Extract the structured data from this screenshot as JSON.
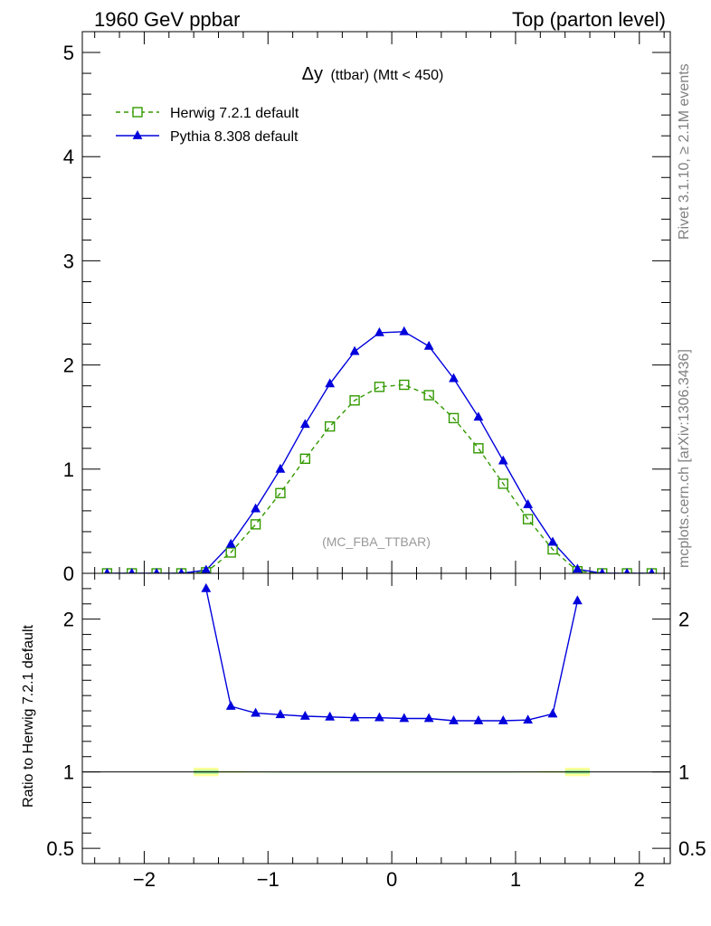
{
  "header": {
    "left": "1960 GeV ppbar",
    "right": "Top (parton level)"
  },
  "side_labels": {
    "rivet": "Rivet 3.1.10, ≥ 2.1M events",
    "mcplots": "mcplots.cern.ch [arXiv:1306.3436]"
  },
  "plot_title": {
    "main": "Δy",
    "sub": "(ttbar) (Mtt < 450)"
  },
  "analysis_label": "(MC_FBA_TTBAR)",
  "colors": {
    "herwig": "#339900",
    "pythia": "#0000dd",
    "band_outer": "#ffff99",
    "band_inner": "#99ee99"
  },
  "chart_data": [
    {
      "type": "line",
      "panel": "main",
      "xlim": [
        -2.5,
        2.25
      ],
      "ylim": [
        0,
        5.2
      ],
      "yticks": [
        0,
        1,
        2,
        3,
        4,
        5
      ],
      "ytick_labels": [
        "0",
        "1",
        "2",
        "3",
        "4",
        "5"
      ],
      "legend_position": "top-left",
      "x": [
        -2.3,
        -2.1,
        -1.9,
        -1.7,
        -1.5,
        -1.3,
        -1.1,
        -0.9,
        -0.7,
        -0.5,
        -0.3,
        -0.1,
        0.1,
        0.3,
        0.5,
        0.7,
        0.9,
        1.1,
        1.3,
        1.5,
        1.7,
        1.9,
        2.1
      ],
      "series": [
        {
          "name": "Herwig 7.2.1 default",
          "marker": "open-square",
          "style": "dashed",
          "values": [
            0,
            0,
            0,
            0,
            0.01,
            0.2,
            0.47,
            0.77,
            1.1,
            1.41,
            1.66,
            1.79,
            1.81,
            1.71,
            1.49,
            1.2,
            0.86,
            0.52,
            0.23,
            0.02,
            0,
            0,
            0
          ]
        },
        {
          "name": "Pythia 8.308 default",
          "marker": "filled-triangle",
          "style": "solid",
          "values": [
            0,
            0,
            0,
            0,
            0.03,
            0.28,
            0.62,
            1.0,
            1.43,
            1.82,
            2.13,
            2.31,
            2.32,
            2.18,
            1.87,
            1.5,
            1.08,
            0.66,
            0.3,
            0.04,
            0,
            0,
            0
          ]
        }
      ]
    },
    {
      "type": "line",
      "panel": "ratio",
      "ylabel": "Ratio to Herwig 7.2.1 default",
      "xlim": [
        -2.5,
        2.25
      ],
      "ylim": [
        0.4,
        2.3
      ],
      "yticks": [
        0.5,
        1,
        2
      ],
      "ytick_labels": [
        "0.5",
        "1",
        "2"
      ],
      "xticks": [
        -2,
        -1,
        0,
        1,
        2
      ],
      "xtick_labels": [
        "−2",
        "−1",
        "0",
        "1",
        "2"
      ],
      "reference_line": 1,
      "band": {
        "x": [
          -1.5,
          -1.3,
          -1.1,
          -0.9,
          -0.7,
          -0.5,
          -0.3,
          -0.1,
          0.1,
          0.3,
          0.5,
          0.7,
          0.9,
          1.1,
          1.3,
          1.5
        ],
        "outer_halfwidth": [
          0.028,
          0.006,
          0.004,
          0.003,
          0.003,
          0.003,
          0.002,
          0.002,
          0.002,
          0.002,
          0.003,
          0.003,
          0.003,
          0.004,
          0.006,
          0.028
        ],
        "inner_halfwidth": [
          0.012,
          0.002,
          0.002,
          0.001,
          0.001,
          0.001,
          0.001,
          0.001,
          0.001,
          0.001,
          0.001,
          0.001,
          0.001,
          0.002,
          0.002,
          0.012
        ]
      },
      "series": [
        {
          "name": "Pythia 8.308 default",
          "x": [
            -1.5,
            -1.3,
            -1.1,
            -0.9,
            -0.7,
            -0.5,
            -0.3,
            -0.1,
            0.1,
            0.3,
            0.5,
            0.7,
            0.9,
            1.1,
            1.3,
            1.5
          ],
          "values": [
            2.2,
            1.43,
            1.385,
            1.375,
            1.365,
            1.36,
            1.355,
            1.355,
            1.35,
            1.35,
            1.335,
            1.335,
            1.335,
            1.34,
            1.38,
            2.12
          ]
        }
      ]
    }
  ]
}
